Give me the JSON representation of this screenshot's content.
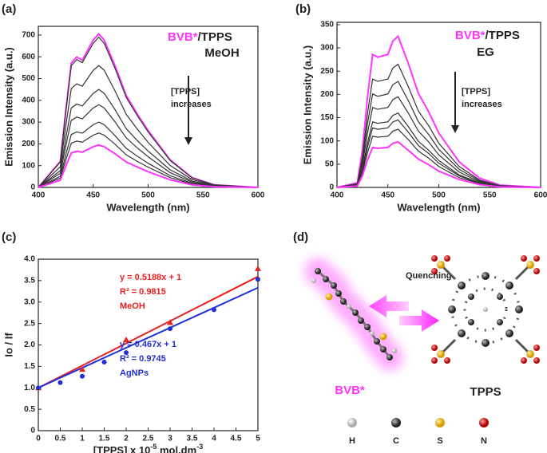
{
  "chart_data": [
    {
      "type": "line",
      "panel": "(a)",
      "x_label": "Wavelength  (nm)",
      "y_label": "Emission Intensity (a.u.)",
      "legend_text": [
        {
          "text": "BVB*",
          "color": "#ff33ff"
        },
        {
          "text": "/TPPS",
          "color": "#222222"
        }
      ],
      "solvent": "MeOH",
      "annotation": [
        "[TPPS]",
        "increases"
      ],
      "xlim": [
        400,
        600
      ],
      "ylim": [
        0,
        740
      ],
      "xticks": [
        400,
        450,
        500,
        550,
        600
      ],
      "yticks": [
        0,
        100,
        200,
        300,
        400,
        500,
        600,
        700
      ],
      "x": [
        400,
        420,
        425,
        430,
        435,
        440,
        450,
        455,
        460,
        470,
        480,
        490,
        500,
        520,
        540,
        560,
        600
      ],
      "series": [
        {
          "color": "#ff33ff",
          "values": [
            0,
            120,
            353,
            571,
            599,
            585,
            677,
            705,
            677,
            557,
            423,
            338,
            261,
            127,
            45,
            12,
            0
          ]
        },
        {
          "color": "#333333",
          "values": [
            0,
            117,
            345,
            559,
            587,
            573,
            662,
            690,
            662,
            545,
            414,
            331,
            255,
            124,
            44,
            12,
            0
          ]
        },
        {
          "color": "#333333",
          "values": [
            0,
            95,
            280,
            454,
            476,
            465,
            538,
            560,
            538,
            442,
            336,
            269,
            207,
            101,
            36,
            10,
            0
          ]
        },
        {
          "color": "#333333",
          "values": [
            0,
            77,
            225,
            365,
            383,
            374,
            432,
            450,
            432,
            356,
            270,
            216,
            167,
            81,
            29,
            8,
            0
          ]
        },
        {
          "color": "#333333",
          "values": [
            0,
            65,
            190,
            308,
            323,
            315,
            365,
            380,
            365,
            300,
            228,
            182,
            141,
            68,
            24,
            6,
            0
          ]
        },
        {
          "color": "#333333",
          "values": [
            0,
            51,
            150,
            243,
            255,
            249,
            288,
            300,
            288,
            237,
            180,
            144,
            111,
            54,
            19,
            5,
            0
          ]
        },
        {
          "color": "#333333",
          "values": [
            0,
            43,
            125,
            203,
            213,
            208,
            240,
            250,
            240,
            198,
            150,
            120,
            93,
            45,
            16,
            4,
            0
          ]
        },
        {
          "color": "#ff33ff",
          "values": [
            0,
            33,
            98,
            158,
            166,
            162,
            187,
            195,
            187,
            154,
            117,
            94,
            72,
            35,
            12,
            3,
            0
          ]
        }
      ]
    },
    {
      "type": "line",
      "panel": "(b)",
      "x_label": "Wavelength  (nm)",
      "y_label": "Emission Intensity (a.u.)",
      "legend_text": [
        {
          "text": "BVB*",
          "color": "#ff33ff"
        },
        {
          "text": "/TPPS",
          "color": "#222222"
        }
      ],
      "solvent": "EG",
      "annotation": [
        "[TPPS]",
        "increases"
      ],
      "xlim": [
        400,
        600
      ],
      "ylim": [
        0,
        355
      ],
      "xticks": [
        400,
        450,
        500,
        550,
        600
      ],
      "yticks": [
        0,
        50,
        100,
        150,
        200,
        250,
        300,
        350
      ],
      "x": [
        400,
        420,
        425,
        430,
        435,
        440,
        450,
        455,
        460,
        470,
        480,
        490,
        500,
        520,
        540,
        560,
        600
      ],
      "series": [
        {
          "color": "#ff33ff",
          "values": [
            0,
            10,
            81,
            195,
            286,
            280,
            286,
            315,
            325,
            267,
            202,
            163,
            117,
            55,
            20,
            5,
            0
          ]
        },
        {
          "color": "#333333",
          "values": [
            0,
            8,
            66,
            159,
            233,
            228,
            233,
            257,
            265,
            217,
            164,
            133,
            95,
            45,
            16,
            4,
            0
          ]
        },
        {
          "color": "#333333",
          "values": [
            0,
            7,
            57,
            137,
            201,
            196,
            201,
            221,
            228,
            187,
            141,
            114,
            82,
            39,
            14,
            3,
            0
          ]
        },
        {
          "color": "#333333",
          "values": [
            0,
            6,
            49,
            117,
            172,
            168,
            172,
            189,
            195,
            160,
            121,
            98,
            70,
            33,
            12,
            3,
            0
          ]
        },
        {
          "color": "#333333",
          "values": [
            0,
            5,
            40,
            96,
            141,
            138,
            141,
            155,
            160,
            131,
            99,
            80,
            58,
            27,
            10,
            2,
            0
          ]
        },
        {
          "color": "#333333",
          "values": [
            0,
            4,
            36,
            87,
            128,
            125,
            128,
            141,
            145,
            119,
            90,
            73,
            52,
            25,
            9,
            2,
            0
          ]
        },
        {
          "color": "#333333",
          "values": [
            0,
            4,
            31,
            75,
            110,
            108,
            110,
            121,
            125,
            103,
            78,
            63,
            45,
            21,
            8,
            2,
            0
          ]
        },
        {
          "color": "#ff33ff",
          "values": [
            0,
            3,
            25,
            59,
            86,
            84,
            86,
            95,
            98,
            80,
            61,
            49,
            35,
            17,
            6,
            1,
            0
          ]
        }
      ]
    },
    {
      "type": "scatter",
      "panel": "(c)",
      "x_label": [
        "[TPPS] x 10",
        "-5",
        " mol.dm",
        "-3"
      ],
      "y_label": "Io / If",
      "xlim": [
        0,
        5
      ],
      "ylim": [
        0,
        4
      ],
      "xticks": [
        0,
        0.5,
        1,
        1.5,
        2,
        2.5,
        3,
        3.5,
        4,
        4.5,
        5
      ],
      "yticks": [
        0,
        0.5,
        {
          "value": 1,
          "label": "1.0"
        },
        1.5,
        {
          "value": 2,
          "label": "2.0"
        },
        2.5,
        {
          "value": 3,
          "label": "3.0"
        },
        3.5,
        {
          "value": 4,
          "label": "4.0"
        }
      ],
      "annotations": [
        {
          "color": "#e82020",
          "lines": [
            "y  = 0.5188x + 1",
            "R² = 0.9815",
            "MeOH"
          ]
        },
        {
          "color": "#2030d8",
          "lines": [
            "y  = 0.467x + 1",
            "R² = 0.9745",
            "AgNPs"
          ]
        }
      ],
      "series": [
        {
          "kind": "line",
          "color": "#e82020",
          "x": [
            0,
            5
          ],
          "values": [
            1,
            3.594
          ]
        },
        {
          "kind": "line",
          "color": "#2030d8",
          "x": [
            0,
            5
          ],
          "values": [
            1,
            3.335
          ]
        },
        {
          "kind": "points",
          "marker": "triangle",
          "color": "#e82020",
          "x": [
            0,
            1,
            2,
            3,
            5
          ],
          "values": [
            1.0,
            1.43,
            2.12,
            2.52,
            3.78
          ]
        },
        {
          "kind": "points",
          "marker": "circle",
          "color": "#2030d8",
          "x": [
            0,
            0.5,
            1,
            1.5,
            2,
            3,
            4,
            5
          ],
          "values": [
            1.0,
            1.12,
            1.27,
            1.6,
            1.82,
            2.38,
            2.82,
            3.53
          ]
        }
      ]
    }
  ],
  "diagram": {
    "panel": "(d)",
    "arrow_label": "Quenching",
    "donor": "BVB*",
    "acceptor": "TPPS",
    "atoms": [
      "H",
      "C",
      "S",
      "N"
    ]
  }
}
